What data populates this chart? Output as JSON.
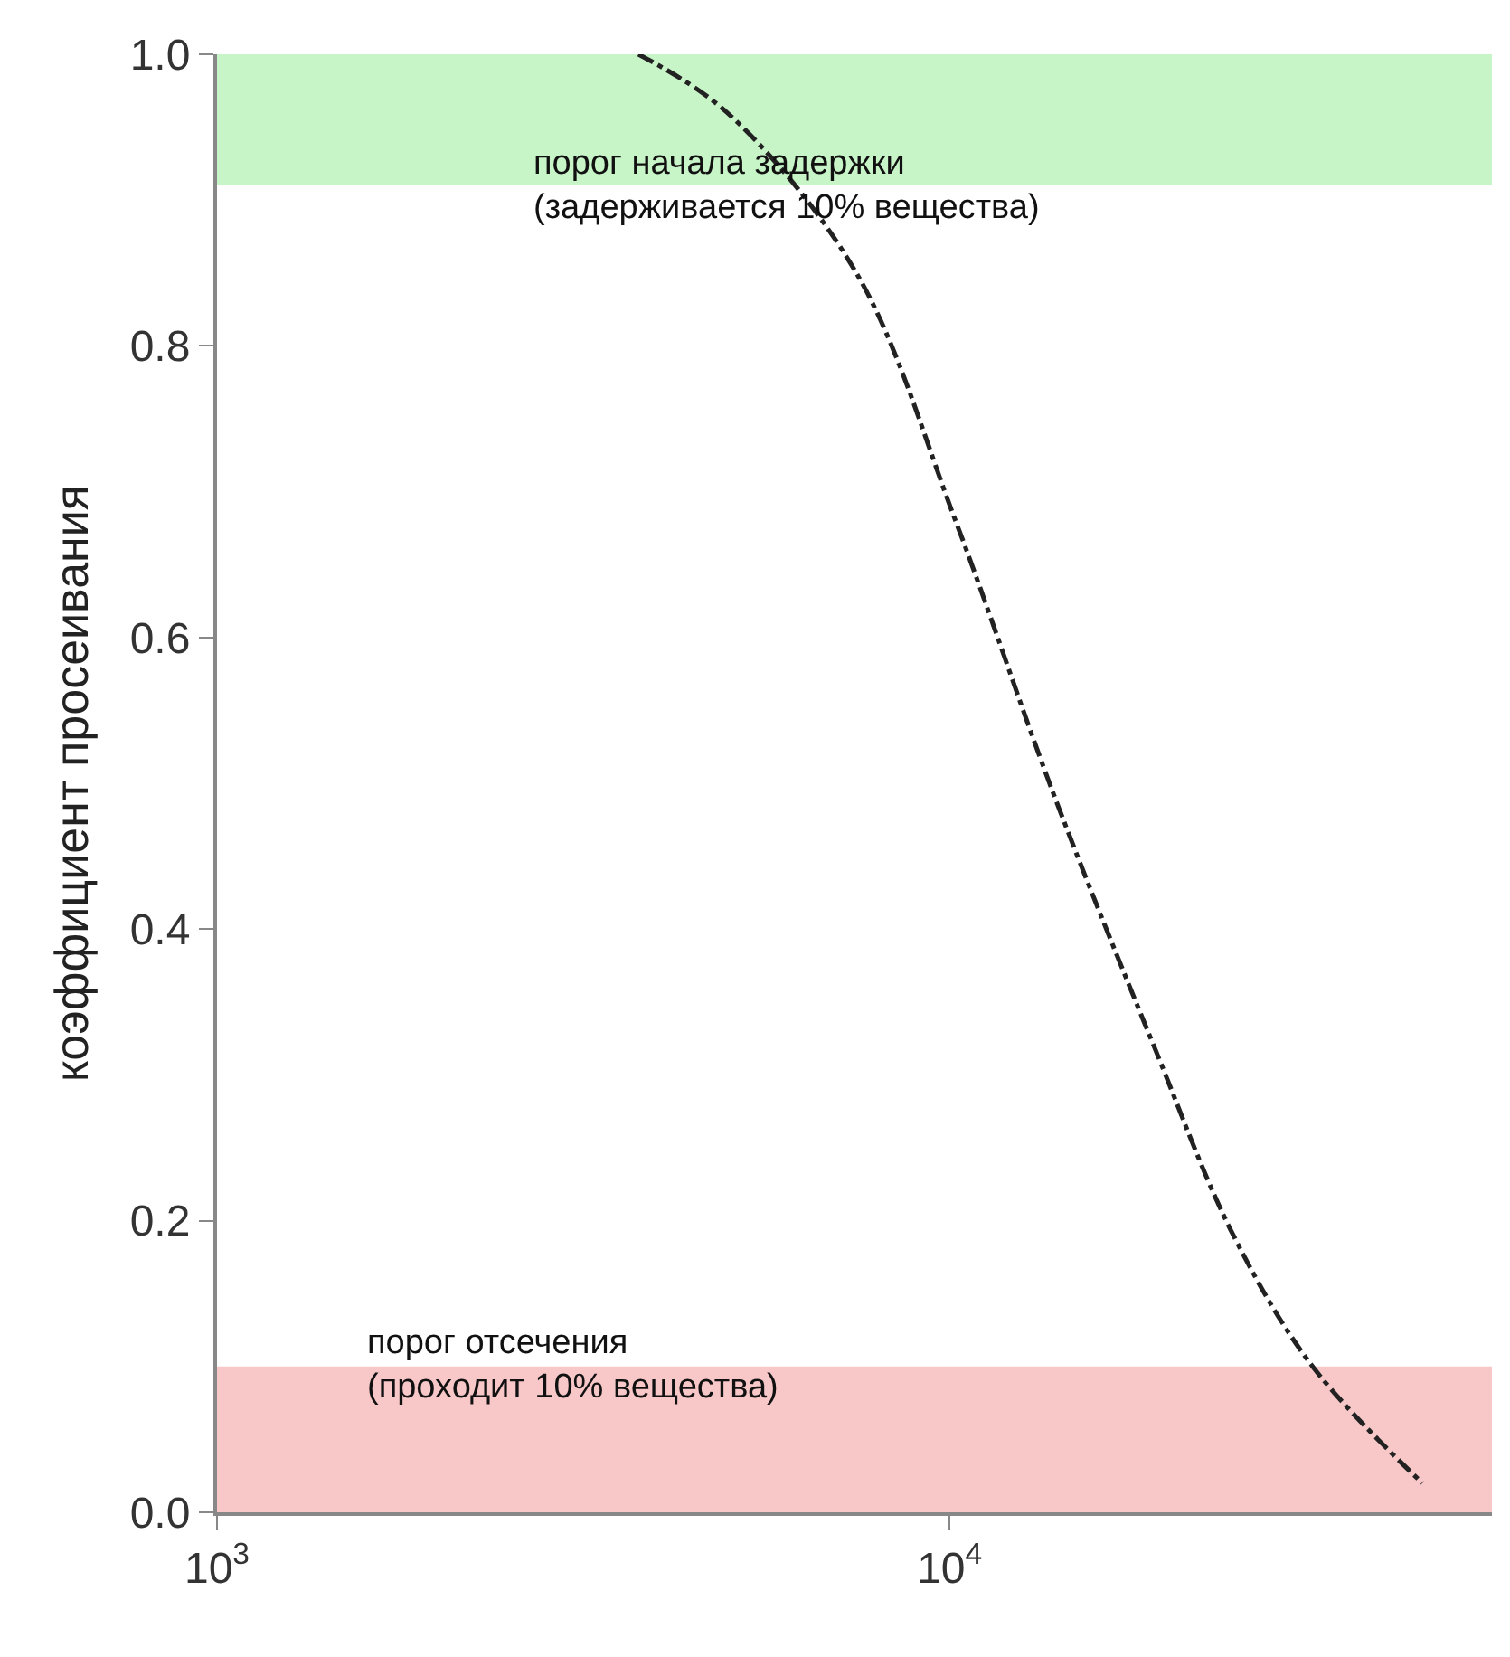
{
  "chart_data": {
    "type": "line",
    "ylabel": "коэффициент просеивания",
    "x": [
      3760,
      4970,
      7460,
      10190,
      13930,
      19000,
      24400,
      31300,
      44200
    ],
    "series": [
      {
        "color": "#222222",
        "values": [
          1.0,
          0.96,
          0.85,
          0.68,
          0.49,
          0.32,
          0.19,
          0.1,
          0.02
        ]
      }
    ],
    "log": "x",
    "xlim": [
      1000,
      55000
    ],
    "xticks": [
      {
        "value": 1000,
        "label": "10$^{3}$"
      },
      {
        "value": 10000,
        "label": "10$^{4}$"
      }
    ],
    "ylim": [
      0,
      1.0
    ],
    "yticks": [
      {
        "value": 0,
        "label": "0.0"
      },
      {
        "value": 0.2,
        "label": "0.2"
      },
      {
        "value": 0.4,
        "label": "0.4"
      },
      {
        "value": 0.6,
        "label": "0.6"
      },
      {
        "value": 0.8,
        "label": "0.8"
      },
      {
        "value": 1.0,
        "label": "1.0"
      }
    ],
    "bands": [
      {
        "axis": "y",
        "from": 0.91,
        "to": 1.0,
        "label": "порог начала задержки\n(задерживается 10% вещества)",
        "color": "#c8f5c8"
      },
      {
        "axis": "y",
        "from": 0,
        "to": 0.1,
        "label": "порог отсечения\n(проходит 10% вещества)",
        "color": "#f8c8c8"
      }
    ],
    "grid": false,
    "marker": "none",
    "line_style": "dashdot"
  }
}
